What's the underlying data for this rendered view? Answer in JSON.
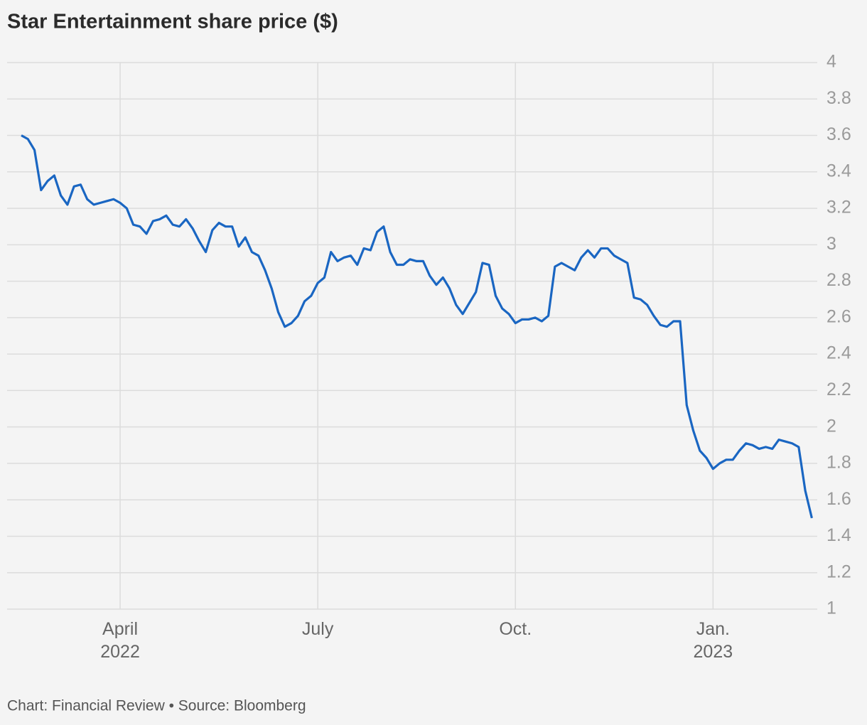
{
  "chart_data": {
    "type": "line",
    "title": "Star Entertainment share price ($)",
    "source": "Chart: Financial Review • Source: Bloomberg",
    "color": "#1a66c2",
    "grid": true,
    "categories": [
      null,
      null,
      null,
      null,
      null,
      null,
      null,
      null,
      null,
      null,
      null,
      null,
      null,
      null,
      null,
      "April 2022",
      null,
      null,
      null,
      null,
      null,
      null,
      null,
      null,
      null,
      null,
      null,
      null,
      null,
      null,
      null,
      null,
      null,
      null,
      null,
      null,
      null,
      null,
      null,
      null,
      null,
      null,
      null,
      null,
      null,
      "July",
      null,
      null,
      null,
      null,
      null,
      null,
      null,
      null,
      null,
      null,
      null,
      null,
      null,
      null,
      null,
      null,
      null,
      null,
      null,
      null,
      null,
      null,
      null,
      null,
      null,
      null,
      null,
      null,
      null,
      "Oct.",
      null,
      null,
      null,
      null,
      null,
      null,
      null,
      null,
      null,
      null,
      null,
      null,
      null,
      null,
      null,
      null,
      null,
      null,
      null,
      null,
      null,
      null,
      null,
      null,
      null,
      null,
      null,
      null,
      null,
      "Jan. 2023",
      null,
      null,
      null,
      null,
      null,
      null,
      null,
      null,
      null,
      null,
      null,
      null,
      null,
      null,
      null
    ],
    "values": [
      3.6,
      3.58,
      3.52,
      3.3,
      3.35,
      3.38,
      3.27,
      3.22,
      3.32,
      3.33,
      3.25,
      3.22,
      3.23,
      3.24,
      3.25,
      3.23,
      3.2,
      3.11,
      3.1,
      3.06,
      3.13,
      3.14,
      3.16,
      3.11,
      3.1,
      3.14,
      3.09,
      3.02,
      2.96,
      3.08,
      3.12,
      3.1,
      3.1,
      2.99,
      3.04,
      2.96,
      2.94,
      2.86,
      2.76,
      2.63,
      2.55,
      2.57,
      2.61,
      2.69,
      2.72,
      2.79,
      2.82,
      2.96,
      2.91,
      2.93,
      2.94,
      2.89,
      2.98,
      2.97,
      3.07,
      3.1,
      2.96,
      2.89,
      2.89,
      2.92,
      2.91,
      2.91,
      2.83,
      2.78,
      2.82,
      2.76,
      2.67,
      2.62,
      2.68,
      2.74,
      2.9,
      2.89,
      2.72,
      2.65,
      2.62,
      2.57,
      2.59,
      2.59,
      2.6,
      2.58,
      2.61,
      2.88,
      2.9,
      2.88,
      2.86,
      2.93,
      2.97,
      2.93,
      2.98,
      2.98,
      2.94,
      2.92,
      2.9,
      2.71,
      2.7,
      2.67,
      2.61,
      2.56,
      2.55,
      2.58,
      2.58,
      2.12,
      1.98,
      1.87,
      1.83,
      1.77,
      1.8,
      1.82,
      1.82,
      1.87,
      1.91,
      1.9,
      1.88,
      1.89,
      1.88,
      1.93,
      1.92,
      1.91,
      1.89,
      1.65,
      1.5
    ],
    "ylim": [
      1,
      4
    ],
    "yticks": [
      1,
      1.2,
      1.4,
      1.6,
      1.8,
      2,
      2.2,
      2.4,
      2.6,
      2.8,
      3,
      3.2,
      3.4,
      3.6,
      3.8,
      4
    ]
  }
}
